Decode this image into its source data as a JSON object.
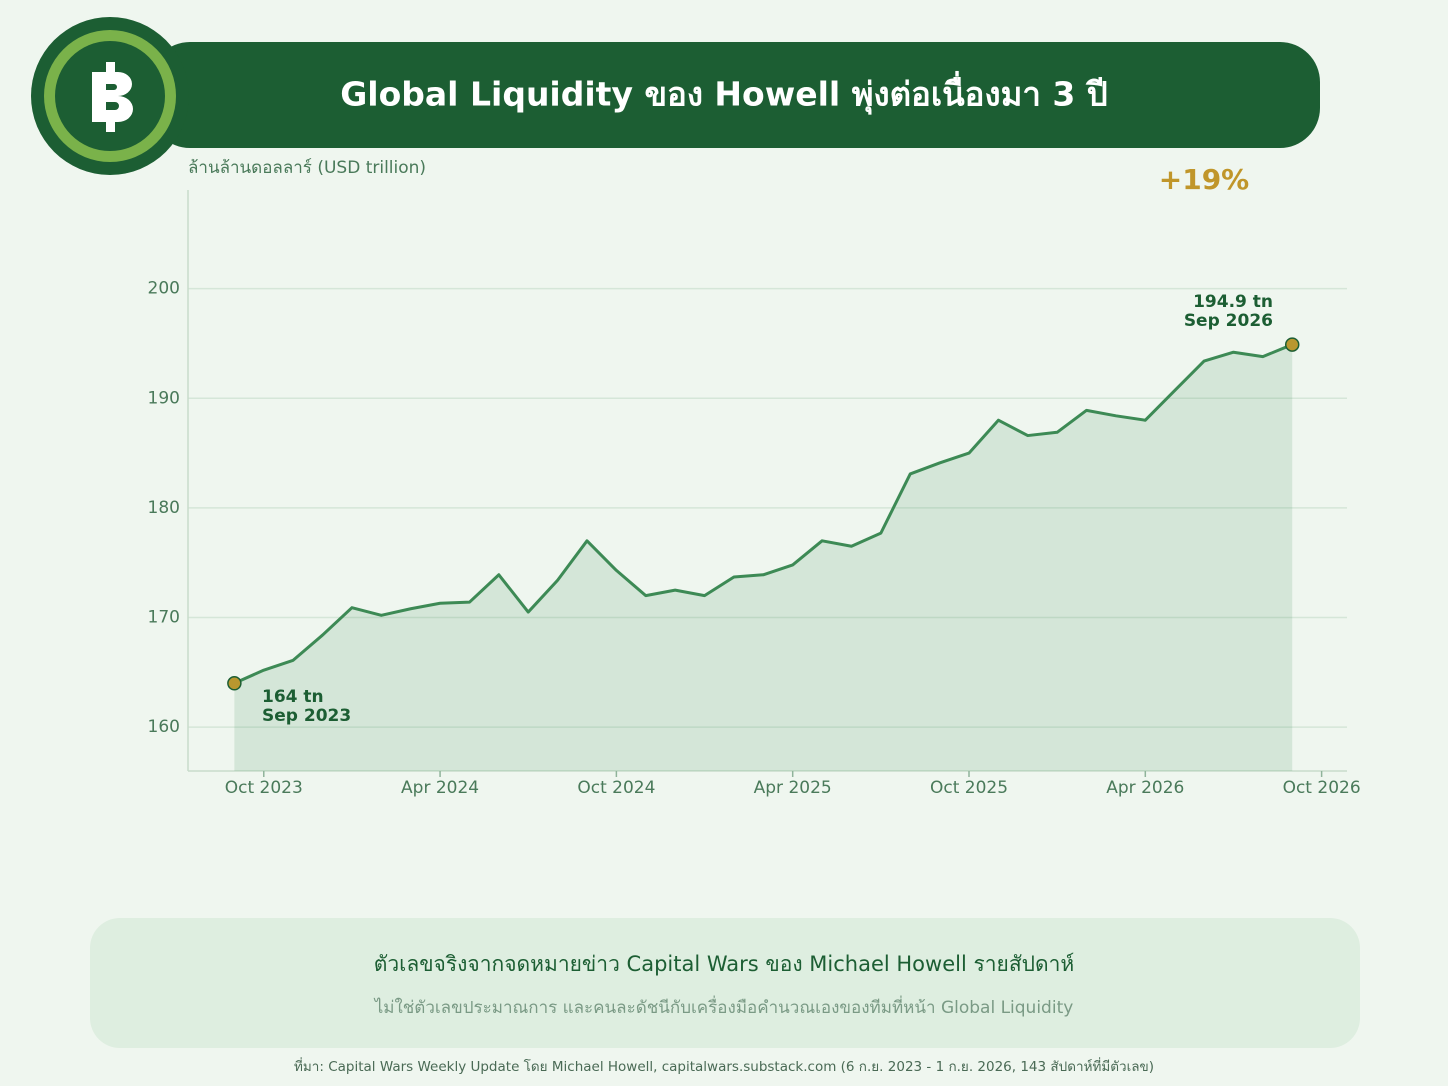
{
  "chart_data": {
    "type": "line",
    "title": "Global Liquidity ของ Howell พุ่งต่อเนื่องมา 3 ปี",
    "y_label": "ล้านล้านดอลลาร์ (USD trillion)",
    "x": [
      "2023-09",
      "2023-10",
      "2023-11",
      "2023-12",
      "2024-01",
      "2024-02",
      "2024-03",
      "2024-04",
      "2024-05",
      "2024-06",
      "2024-07",
      "2024-08",
      "2024-09",
      "2024-10",
      "2024-11",
      "2024-12",
      "2025-01",
      "2025-02",
      "2025-03",
      "2025-04",
      "2025-05",
      "2025-06",
      "2025-07",
      "2025-08",
      "2025-09",
      "2025-10",
      "2025-11",
      "2025-12",
      "2026-01",
      "2026-02",
      "2026-03",
      "2026-04",
      "2026-05",
      "2026-06",
      "2026-07",
      "2026-08",
      "2026-09"
    ],
    "series": [
      {
        "name": "Global Liquidity",
        "color": "#3d8a55",
        "values": [
          164,
          165.2,
          166.1,
          168.4,
          170.9,
          170.2,
          170.8,
          171.3,
          171.4,
          173.9,
          170.5,
          173.4,
          177.0,
          174.3,
          172.0,
          172.5,
          172.0,
          173.7,
          173.9,
          174.8,
          177.0,
          176.5,
          177.7,
          183.1,
          184.1,
          185.0,
          188.0,
          186.6,
          186.9,
          188.9,
          188.4,
          188.0,
          190.7,
          193.4,
          194.2,
          193.8,
          194.9
        ]
      }
    ],
    "marker_color": "#b8972f",
    "area": true,
    "grid": true,
    "xlim": [
      "2023-08",
      "2026-11"
    ],
    "xticks": [
      {
        "value": "2023-10",
        "label": "Oct 2023"
      },
      {
        "value": "2024-04",
        "label": "Apr 2024"
      },
      {
        "value": "2024-10",
        "label": "Oct 2024"
      },
      {
        "value": "2025-04",
        "label": "Apr 2025"
      },
      {
        "value": "2025-10",
        "label": "Oct 2025"
      },
      {
        "value": "2026-04",
        "label": "Apr 2026"
      },
      {
        "value": "2026-10",
        "label": "Oct 2026"
      }
    ],
    "ylim": [
      156,
      209
    ],
    "yticks": [
      160,
      170,
      180,
      190,
      200
    ],
    "annotations": [
      "164 tn",
      "Sep 2023",
      "194.9 tn",
      "Sep 2026",
      "+19%"
    ]
  },
  "footer": {
    "headline": "ตัวเลขจริงจากจดหมายข่าว Capital Wars ของ Michael Howell รายสัปดาห์",
    "note": "ไม่ใช่ตัวเลขประมาณการ และคนละดัชนีกับเครื่องมือคำนวณเองของทีมที่หน้า Global Liquidity",
    "source": "ที่มา: Capital Wars Weekly Update โดย Michael Howell, capitalwars.substack.com (6 ก.ย. 2023 - 1 ก.ย. 2026, 143 สัปดาห์ที่มีตัวเลข)"
  }
}
